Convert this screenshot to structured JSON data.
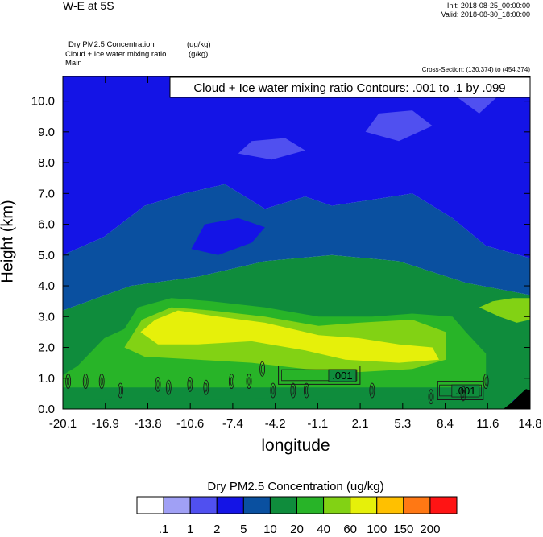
{
  "header": {
    "title": "W-E at 5S",
    "init": "Init: 2018-08-25_00:00:00",
    "valid": "Valid: 2018-08-30_18:00:00"
  },
  "fields": {
    "line1": "Dry PM2.5 Concentration",
    "line1_units": "(ug/kg)",
    "line2": "Cloud + Ice water mixing ratio",
    "line2_units": "(g/kg)",
    "line3": "Main"
  },
  "cross_section": "Cross-Section: (130,374) to (454,374)",
  "chart_data": {
    "type": "heatmap",
    "contour_label": "Cloud + Ice water mixing ratio Contours: .001 to .1 by .099",
    "xlabel": "longitude",
    "ylabel": "Height (km)",
    "xlim": [
      -20.1,
      14.8
    ],
    "ylim": [
      0,
      10.8
    ],
    "x_ticks": [
      "-20.1",
      "-16.9",
      "-13.8",
      "-10.6",
      "-7.4",
      "-4.2",
      "-1.1",
      "2.1",
      "5.3",
      "8.4",
      "11.6",
      "14.8"
    ],
    "y_ticks": [
      "0.0",
      "1.0",
      "2.0",
      "3.0",
      "4.0",
      "5.0",
      "6.0",
      "7.0",
      "8.0",
      "9.0",
      "10.0"
    ],
    "contour_inline_labels": [
      ".001",
      ".001"
    ],
    "colorbar": {
      "title": "Dry PM2.5 Concentration  (ug/kg)",
      "levels": [
        ".1",
        "1",
        "2",
        "5",
        "10",
        "20",
        "40",
        "60",
        "100",
        "150",
        "200"
      ],
      "colors": [
        "#ffffff",
        "#a0a0f5",
        "#5050f0",
        "#1414e6",
        "#0a50a0",
        "#0f8c3c",
        "#28b428",
        "#82d214",
        "#e6f00a",
        "#ffc000",
        "#ff7814",
        "#ff1414"
      ]
    },
    "field_regions": [
      {
        "level": 5,
        "polygon": [
          [
            -20.1,
            0
          ],
          [
            14.8,
            0
          ],
          [
            14.8,
            3.7
          ],
          [
            10,
            4.1
          ],
          [
            5,
            4.8
          ],
          [
            0,
            5.0
          ],
          [
            -5,
            4.8
          ],
          [
            -10,
            4.3
          ],
          [
            -15,
            4.0
          ],
          [
            -20.1,
            3.2
          ]
        ]
      },
      {
        "level": 4,
        "polygon": [
          [
            -20.1,
            3.2
          ],
          [
            -15,
            4.0
          ],
          [
            -10,
            4.3
          ],
          [
            -5,
            4.8
          ],
          [
            0,
            5.0
          ],
          [
            5,
            4.8
          ],
          [
            10,
            4.1
          ],
          [
            14.8,
            3.7
          ],
          [
            14.8,
            4.9
          ],
          [
            11.5,
            5.3
          ],
          [
            9,
            6.2
          ],
          [
            6,
            7.0
          ],
          [
            3,
            6.8
          ],
          [
            0,
            6.6
          ],
          [
            -2,
            6.9
          ],
          [
            -5,
            6.5
          ],
          [
            -8,
            7.3
          ],
          [
            -11,
            7.0
          ],
          [
            -14,
            6.6
          ],
          [
            -17,
            5.6
          ],
          [
            -20.1,
            5.0
          ]
        ]
      },
      {
        "level": 3,
        "polygon": [
          [
            -20.1,
            5.0
          ],
          [
            -17,
            5.6
          ],
          [
            -14,
            6.6
          ],
          [
            -11,
            7.0
          ],
          [
            -8,
            7.3
          ],
          [
            -5,
            6.5
          ],
          [
            -2,
            6.9
          ],
          [
            0,
            6.6
          ],
          [
            3,
            6.8
          ],
          [
            6,
            7.0
          ],
          [
            9,
            6.2
          ],
          [
            11.5,
            5.3
          ],
          [
            14.8,
            4.9
          ],
          [
            14.8,
            10.8
          ],
          [
            -20.1,
            10.8
          ]
        ]
      },
      {
        "level": 3,
        "polygon": [
          [
            -10.5,
            5.2
          ],
          [
            -8.5,
            5.0
          ],
          [
            -6,
            5.4
          ],
          [
            -5,
            5.9
          ],
          [
            -7,
            6.2
          ],
          [
            -9.5,
            6.0
          ]
        ]
      },
      {
        "level": 2,
        "polygon": [
          [
            -7,
            8.3
          ],
          [
            -4.5,
            8.1
          ],
          [
            -2,
            8.4
          ],
          [
            -3.5,
            8.8
          ],
          [
            -6,
            8.7
          ]
        ]
      },
      {
        "level": 2,
        "polygon": [
          [
            2.5,
            9.0
          ],
          [
            5,
            8.7
          ],
          [
            7.5,
            9.2
          ],
          [
            6,
            9.7
          ],
          [
            3.5,
            9.6
          ]
        ]
      },
      {
        "level": 2,
        "polygon": [
          [
            8.8,
            10.3
          ],
          [
            11,
            9.6
          ],
          [
            12.5,
            10.2
          ],
          [
            11,
            10.8
          ],
          [
            9.5,
            10.8
          ]
        ]
      },
      {
        "level": 6,
        "polygon": [
          [
            -20.1,
            1.1
          ],
          [
            -19,
            1.4
          ],
          [
            -17,
            2.3
          ],
          [
            -15.5,
            2.6
          ],
          [
            -14.5,
            3.3
          ],
          [
            -12,
            3.6
          ],
          [
            -9,
            3.5
          ],
          [
            -5,
            3.3
          ],
          [
            -1,
            3.0
          ],
          [
            3,
            3.0
          ],
          [
            6,
            3.1
          ],
          [
            9,
            3.0
          ],
          [
            10,
            2.5
          ],
          [
            11.5,
            1.8
          ],
          [
            11.5,
            0.7
          ],
          [
            -20.1,
            0.7
          ]
        ]
      },
      {
        "level": 7,
        "polygon": [
          [
            -15.5,
            2.0
          ],
          [
            -14.2,
            2.9
          ],
          [
            -12,
            3.3
          ],
          [
            -9,
            3.2
          ],
          [
            -5,
            3.0
          ],
          [
            -1,
            2.7
          ],
          [
            2,
            2.8
          ],
          [
            6,
            2.9
          ],
          [
            8.5,
            2.5
          ],
          [
            8.5,
            1.6
          ],
          [
            6,
            1.3
          ],
          [
            2,
            1.2
          ],
          [
            -2,
            1.3
          ],
          [
            -6,
            1.5
          ],
          [
            -10,
            1.6
          ],
          [
            -14,
            1.7
          ]
        ]
      },
      {
        "level": 7,
        "polygon": [
          [
            11,
            3.3
          ],
          [
            12.5,
            3.0
          ],
          [
            13.8,
            2.8
          ],
          [
            14.8,
            2.9
          ],
          [
            14.8,
            3.6
          ],
          [
            13.5,
            3.6
          ],
          [
            12,
            3.5
          ]
        ]
      },
      {
        "level": 8,
        "polygon": [
          [
            -14.3,
            2.5
          ],
          [
            -13.2,
            2.9
          ],
          [
            -11.5,
            3.2
          ],
          [
            -8.5,
            3.0
          ],
          [
            -5,
            2.8
          ],
          [
            -1,
            2.4
          ],
          [
            2,
            2.3
          ],
          [
            5,
            2.1
          ],
          [
            7.5,
            2.0
          ],
          [
            8,
            1.6
          ],
          [
            5,
            1.5
          ],
          [
            1,
            1.6
          ],
          [
            -2,
            1.9
          ],
          [
            -6,
            2.2
          ],
          [
            -10,
            2.1
          ],
          [
            -13,
            2.1
          ]
        ]
      },
      {
        "level": 5,
        "polygon": [
          [
            -20.1,
            0
          ],
          [
            14.8,
            0
          ],
          [
            14.8,
            0.3
          ],
          [
            11,
            0.35
          ],
          [
            7,
            0.3
          ],
          [
            3,
            0.35
          ],
          [
            -1,
            0.3
          ],
          [
            -5,
            0.35
          ],
          [
            -9,
            0.3
          ],
          [
            -13,
            0.35
          ],
          [
            -17,
            0.3
          ],
          [
            -20.1,
            0.35
          ]
        ]
      },
      {
        "level": 3,
        "polygon": [
          [
            13,
            0
          ],
          [
            14.8,
            0
          ],
          [
            14.8,
            0.6
          ],
          [
            14.2,
            0.5
          ],
          [
            13.6,
            0.3
          ]
        ]
      }
    ],
    "contours": [
      {
        "label": ".001",
        "polygon": [
          [
            -4.0,
            0.8
          ],
          [
            2.1,
            0.8
          ],
          [
            2.1,
            1.4
          ],
          [
            -4.0,
            1.4
          ]
        ]
      },
      {
        "label": ".001",
        "polygon": [
          [
            7.9,
            0.3
          ],
          [
            11.3,
            0.3
          ],
          [
            11.3,
            0.9
          ],
          [
            7.9,
            0.9
          ]
        ]
      }
    ],
    "small_cloud_cells": [
      [
        -19.7,
        0.9
      ],
      [
        -18.4,
        0.9
      ],
      [
        -17.2,
        0.9
      ],
      [
        -15.8,
        0.6
      ],
      [
        -13.0,
        0.8
      ],
      [
        -12.2,
        0.7
      ],
      [
        -10.6,
        0.8
      ],
      [
        -9.4,
        0.7
      ],
      [
        -7.5,
        0.9
      ],
      [
        -6.2,
        0.9
      ],
      [
        -5.2,
        1.3
      ],
      [
        -4.4,
        0.6
      ],
      [
        -2.9,
        0.6
      ],
      [
        -1.9,
        0.6
      ],
      [
        3.0,
        0.6
      ],
      [
        7.4,
        0.4
      ],
      [
        9.8,
        0.5
      ],
      [
        11.5,
        0.9
      ]
    ],
    "terrain": {
      "polygon": [
        [
          12.8,
          0
        ],
        [
          13.4,
          0.2
        ],
        [
          14.0,
          0.45
        ],
        [
          14.5,
          0.65
        ],
        [
          14.8,
          0.6
        ],
        [
          14.8,
          0
        ]
      ]
    }
  }
}
